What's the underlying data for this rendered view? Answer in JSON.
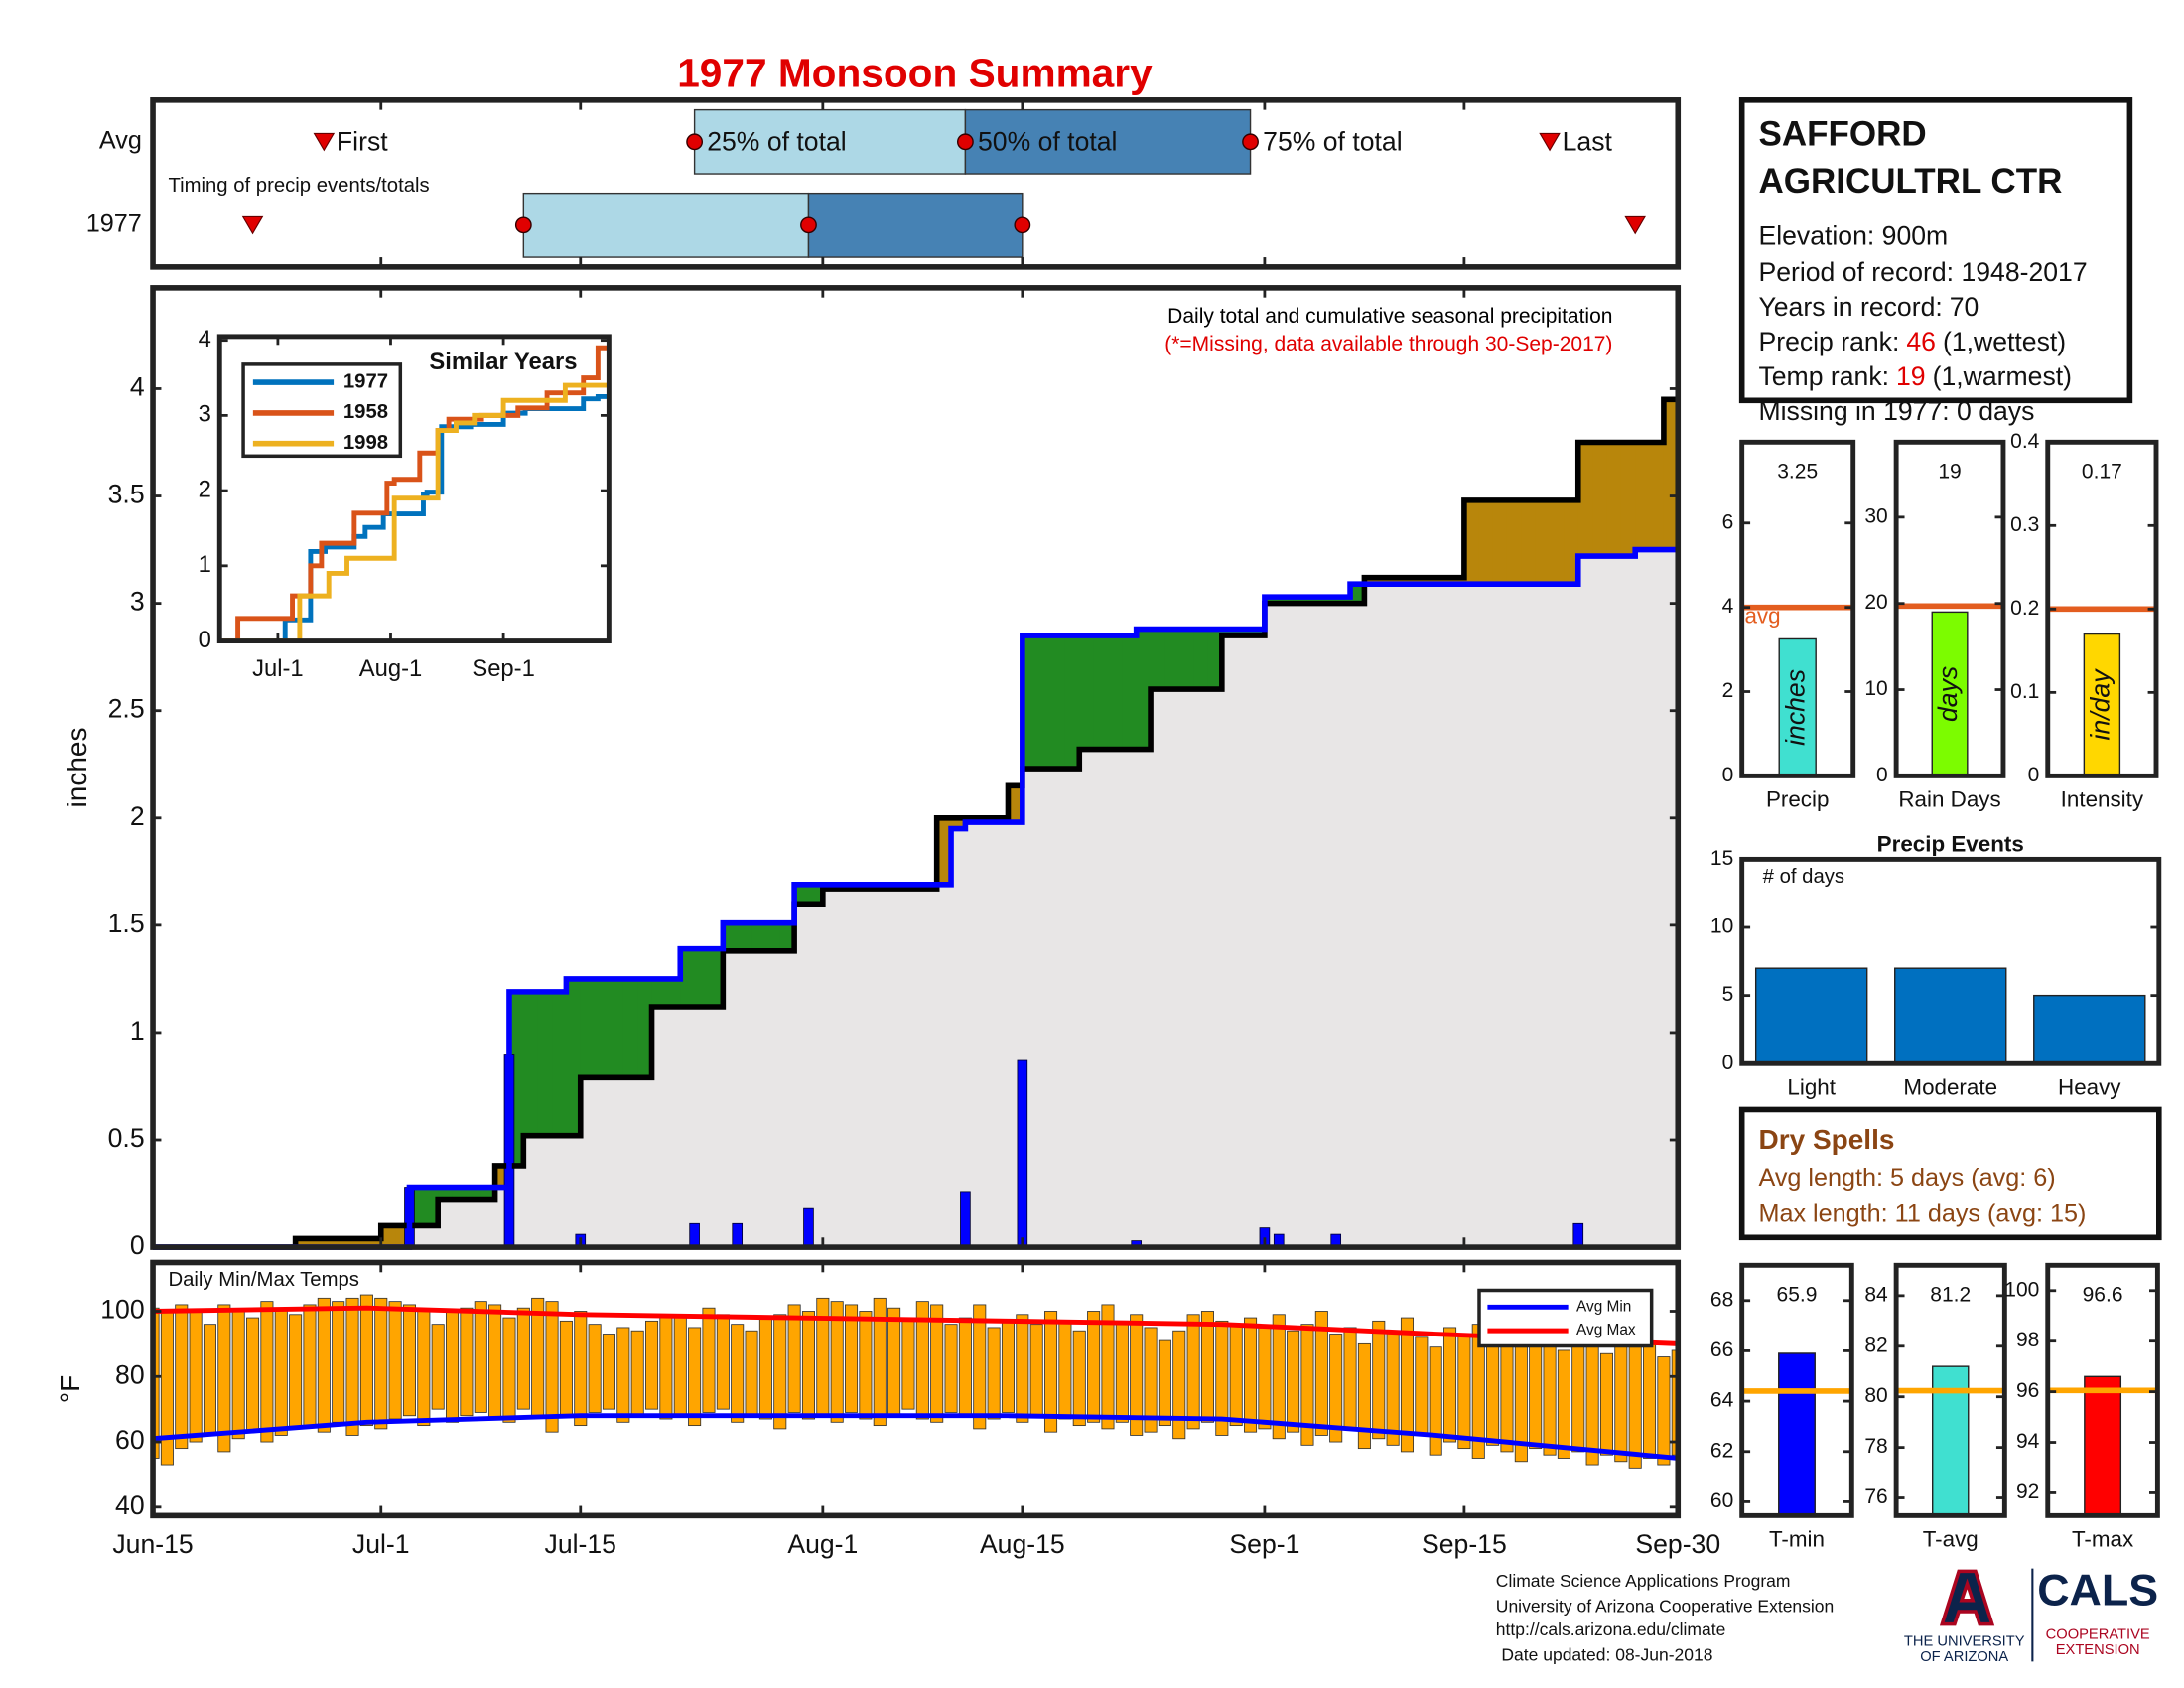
{
  "title": "1977 Monsoon Summary",
  "station": {
    "name": [
      "SAFFORD",
      "AGRICULTRL CTR"
    ],
    "elevation": "Elevation: 900m",
    "period": "Period of record: 1948-2017",
    "years": {
      "label": "Years in record:",
      "value": 70
    },
    "precip_rank": {
      "label": "Precip rank:",
      "value": 46,
      "note": "(1,wettest)"
    },
    "temp_rank": {
      "label": "Temp rank:",
      "value": 19,
      "note": "(1,warmest)"
    },
    "missing": "Missing in 1977: 0 days",
    "rank_color": "#e00000"
  },
  "dry_spells": {
    "title": "Dry Spells",
    "lines": [
      "Avg length: 5 days (avg: 6)",
      "Max length: 11 days (avg: 15)"
    ],
    "color": "#8b4513"
  },
  "footer": [
    "Climate Science Applications Program",
    "University of Arizona Cooperative Extension",
    "http://cals.arizona.edu/climate",
    "Date updated: 08-Jun-2018"
  ],
  "logo": {
    "university": [
      "THE UNIVERSITY",
      "OF ARIZONA"
    ],
    "cals": "CALS",
    "extension": [
      "COOPERATIVE",
      "EXTENSION"
    ]
  },
  "chart_data": [
    {
      "type": "timing",
      "annotation": "Timing of precip events/totals",
      "xlim": [
        0,
        107
      ],
      "labels": {
        "first": "First",
        "p25": "25% of total",
        "p50": "50% of total",
        "p75": "75% of total",
        "last": "Last"
      },
      "rows": [
        {
          "label": "Avg",
          "first": 12,
          "p25": 38,
          "p50": 57,
          "p75": 77,
          "last": 98
        },
        {
          "label": "1977",
          "first": 7,
          "p25": 26,
          "p50": 46,
          "p75": 61,
          "last": 104
        }
      ],
      "colors": {
        "early": "#add8e6",
        "late": "#4682b4",
        "marker": "#e00000"
      }
    },
    {
      "type": "area",
      "ylabel": "inches",
      "annotations": [
        "Daily total and cumulative seasonal precipitation",
        "(*=Missing, data available through 30-Sep-2017)"
      ],
      "annotation_colors": [
        "#000000",
        "#e00000"
      ],
      "xlim": [
        0,
        107
      ],
      "ylim": [
        0,
        4.47
      ],
      "yticks": [
        0,
        0.5,
        1,
        1.5,
        2,
        2.5,
        3,
        3.5,
        4
      ],
      "daily": {
        "color": "#0000ff",
        "x": [
          18,
          25,
          30,
          38,
          41,
          46,
          57,
          61,
          69,
          78,
          79,
          83,
          88,
          100
        ],
        "values": [
          0.28,
          0.9,
          0.06,
          0.11,
          0.11,
          0.18,
          0.26,
          0.87,
          0.03,
          0.09,
          0.06,
          0.06,
          0.01,
          0.11
        ]
      },
      "observed": {
        "color": "#0000ff",
        "x": [
          0,
          18,
          25,
          29,
          37,
          40,
          45,
          56,
          57,
          61,
          69,
          78,
          84,
          100,
          104
        ],
        "values": [
          0,
          0.28,
          1.19,
          1.25,
          1.39,
          1.51,
          1.69,
          1.95,
          1.98,
          2.85,
          2.88,
          3.03,
          3.09,
          3.22,
          3.25
        ]
      },
      "average": {
        "color": "#000000",
        "x": [
          0,
          10,
          16,
          20,
          24,
          26,
          30,
          35,
          40,
          45,
          47,
          55,
          60,
          61,
          65,
          70,
          75,
          78,
          85,
          92,
          100,
          106
        ],
        "values": [
          0,
          0.04,
          0.1,
          0.22,
          0.38,
          0.52,
          0.79,
          1.12,
          1.38,
          1.6,
          1.67,
          2.0,
          2.15,
          2.23,
          2.32,
          2.6,
          2.85,
          3.0,
          3.12,
          3.48,
          3.75,
          3.95
        ]
      },
      "fill_colors": {
        "above": "#228b22",
        "below": "#b8860b",
        "base": "#e8e6e6"
      }
    },
    {
      "type": "line",
      "title": "Similar Years",
      "xlim": [
        0,
        107
      ],
      "ylim": [
        0,
        4.05
      ],
      "yticks": [
        0,
        1,
        2,
        3,
        4
      ],
      "xticks": [
        {
          "value": 16,
          "label": "Jul-1"
        },
        {
          "value": 47,
          "label": "Aug-1"
        },
        {
          "value": 78,
          "label": "Sep-1"
        }
      ],
      "series": [
        {
          "name": "1977",
          "color": "#0072bd",
          "x": [
            0,
            18,
            25,
            29,
            37,
            40,
            45,
            56,
            57,
            61,
            69,
            78,
            84,
            100,
            104
          ],
          "values": [
            0,
            0.28,
            1.19,
            1.25,
            1.39,
            1.51,
            1.69,
            1.95,
            1.98,
            2.85,
            2.88,
            3.03,
            3.09,
            3.22,
            3.25
          ]
        },
        {
          "name": "1958",
          "color": "#d95319",
          "x": [
            0,
            5,
            20,
            25,
            28,
            37,
            46,
            48,
            55,
            60,
            63,
            72,
            82,
            90,
            100,
            104
          ],
          "values": [
            0,
            0.3,
            0.6,
            1.0,
            1.3,
            1.7,
            2.1,
            2.15,
            2.5,
            2.8,
            2.95,
            3.0,
            3.1,
            3.3,
            3.5,
            3.9
          ]
        },
        {
          "name": "1998",
          "color": "#edb120",
          "x": [
            0,
            22,
            30,
            35,
            48,
            60,
            65,
            70,
            78,
            95
          ],
          "values": [
            0,
            0.6,
            0.9,
            1.1,
            1.9,
            2.8,
            2.9,
            3.0,
            3.2,
            3.4
          ]
        }
      ]
    },
    {
      "type": "range-bar",
      "annotation": "Daily Min/Max Temps",
      "ylabel": "°F",
      "xlim": [
        0,
        107
      ],
      "ylim": [
        37.4,
        114.9
      ],
      "yticks": [
        40,
        60,
        80,
        100
      ],
      "xticks": [
        {
          "value": 0,
          "label": "Jun-15"
        },
        {
          "value": 16,
          "label": "Jul-1"
        },
        {
          "value": 30,
          "label": "Jul-15"
        },
        {
          "value": 47,
          "label": "Aug-1"
        },
        {
          "value": 61,
          "label": "Aug-15"
        },
        {
          "value": 78,
          "label": "Sep-1"
        },
        {
          "value": 92,
          "label": "Sep-15"
        },
        {
          "value": 107,
          "label": "Sep-30"
        }
      ],
      "bar_color": "#ffa500",
      "max_values": [
        101,
        100,
        102,
        100,
        96,
        102,
        100,
        98,
        103,
        101,
        99,
        102,
        104,
        103,
        104,
        105,
        104,
        103,
        102,
        100,
        96,
        100,
        101,
        103,
        102,
        98,
        101,
        104,
        103,
        97,
        100,
        96,
        93,
        95,
        94,
        97,
        99,
        98,
        95,
        101,
        99,
        96,
        94,
        98,
        99,
        102,
        100,
        104,
        103,
        102,
        100,
        104,
        101,
        98,
        103,
        102,
        96,
        98,
        102,
        95,
        97,
        99,
        96,
        100,
        97,
        94,
        100,
        102,
        97,
        99,
        95,
        91,
        94,
        99,
        100,
        97,
        96,
        98,
        95,
        99,
        94,
        96,
        100,
        93,
        95,
        90,
        97,
        94,
        98,
        92,
        89,
        95,
        93,
        96,
        90,
        92,
        89,
        94,
        90,
        88,
        95,
        91,
        87,
        92,
        89,
        90,
        86,
        88
      ],
      "min_values": [
        55,
        53,
        58,
        60,
        62,
        57,
        61,
        63,
        60,
        62,
        64,
        65,
        63,
        66,
        62,
        65,
        64,
        67,
        68,
        65,
        70,
        66,
        68,
        69,
        67,
        66,
        70,
        68,
        63,
        68,
        65,
        69,
        70,
        66,
        68,
        70,
        67,
        68,
        65,
        69,
        70,
        66,
        68,
        67,
        64,
        69,
        67,
        68,
        66,
        69,
        67,
        65,
        68,
        70,
        67,
        66,
        69,
        68,
        64,
        67,
        69,
        66,
        68,
        63,
        67,
        65,
        66,
        64,
        66,
        62,
        63,
        65,
        61,
        64,
        66,
        62,
        65,
        63,
        64,
        61,
        63,
        59,
        62,
        60,
        64,
        58,
        61,
        59,
        57,
        62,
        56,
        60,
        58,
        55,
        59,
        57,
        54,
        58,
        56,
        55,
        57,
        53,
        56,
        54,
        52,
        55,
        53,
        56
      ],
      "series": [
        {
          "name": "Avg Min",
          "color": "#0000ff",
          "x": [
            0,
            15,
            30,
            45,
            60,
            75,
            90,
            107
          ],
          "values": [
            61,
            66,
            68,
            68,
            68,
            67,
            62,
            55
          ]
        },
        {
          "name": "Avg Max",
          "color": "#ff0000",
          "x": [
            0,
            15,
            30,
            45,
            60,
            75,
            90,
            107
          ],
          "values": [
            100,
            101,
            99,
            98,
            97,
            96,
            93,
            90
          ]
        }
      ]
    },
    {
      "type": "bar",
      "categories": [
        "Precip"
      ],
      "values": [
        3.25
      ],
      "unit": "inches",
      "show_values": true,
      "color": "#40e0d0",
      "avg": 4,
      "avg_label": "avg",
      "avg_color": "#e35d1f",
      "ylim": [
        0,
        7.92
      ],
      "yticks": [
        0,
        2,
        4,
        6
      ]
    },
    {
      "type": "bar",
      "categories": [
        "Rain Days"
      ],
      "values": [
        19
      ],
      "unit": "days",
      "show_values": true,
      "color": "#7cfc00",
      "avg": 19.7,
      "avg_color": "#e35d1f",
      "ylim": [
        0,
        38.7
      ],
      "yticks": [
        0,
        10,
        20,
        30
      ]
    },
    {
      "type": "bar",
      "categories": [
        "Intensity"
      ],
      "values": [
        0.17
      ],
      "unit": "in/day",
      "show_values": true,
      "color": "#ffd700",
      "avg": 0.2,
      "avg_color": "#e35d1f",
      "ylim": [
        0,
        0.4
      ],
      "yticks": [
        0,
        0.1,
        0.2,
        0.3,
        0.4
      ]
    },
    {
      "type": "bar",
      "title": "Precip Events",
      "annotation": "# of days",
      "categories": [
        "Light",
        "Moderate",
        "Heavy"
      ],
      "values": [
        7,
        7,
        5
      ],
      "color": "#0070c0",
      "ylim": [
        0,
        15
      ],
      "yticks": [
        0,
        5,
        10,
        15
      ]
    },
    {
      "type": "bar",
      "categories": [
        "T-min"
      ],
      "values": [
        65.9
      ],
      "show_values": true,
      "color": "#0000ff",
      "avg": 64.4,
      "avg_color": "#ffa500",
      "ylim": [
        59.45,
        69.4
      ],
      "yticks": [
        60,
        62,
        64,
        66,
        68
      ]
    },
    {
      "type": "bar",
      "categories": [
        "T-avg"
      ],
      "values": [
        81.2
      ],
      "show_values": true,
      "color": "#40e0d0",
      "avg": 80.24,
      "avg_color": "#ffa500",
      "ylim": [
        75.3,
        85.2
      ],
      "yticks": [
        76,
        78,
        80,
        82,
        84
      ]
    },
    {
      "type": "bar",
      "categories": [
        "T-max"
      ],
      "values": [
        96.6
      ],
      "show_values": true,
      "color": "#ff0000",
      "avg": 96.05,
      "avg_color": "#ffa500",
      "ylim": [
        91.1,
        101
      ],
      "yticks": [
        92,
        94,
        96,
        98,
        100
      ]
    }
  ]
}
